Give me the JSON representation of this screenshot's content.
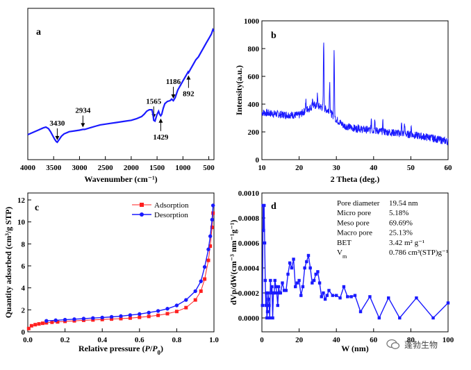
{
  "watermark": {
    "text": "蓬勃生物"
  },
  "chart_data": [
    {
      "panel": "a",
      "type": "line",
      "xlabel": "Wavenumber (cm⁻¹)",
      "ylabel": "",
      "xlim": [
        4000,
        400
      ],
      "x_reversed": true,
      "x_ticks": [
        4000,
        3500,
        3000,
        2500,
        2000,
        1500,
        1000,
        500
      ],
      "y_ticks_shown": false,
      "color": "#1a1aff",
      "series": [
        {
          "x": [
            4000,
            3900,
            3800,
            3700,
            3650,
            3600,
            3560,
            3520,
            3480,
            3450,
            3430,
            3400,
            3350,
            3300,
            3200,
            3100,
            3000,
            2934,
            2900,
            2800,
            2700,
            2600,
            2500,
            2400,
            2300,
            2200,
            2100,
            2000,
            1900,
            1800,
            1750,
            1700,
            1650,
            1600,
            1580,
            1565,
            1540,
            1500,
            1470,
            1450,
            1429,
            1410,
            1380,
            1350,
            1300,
            1250,
            1220,
            1186,
            1150,
            1100,
            1050,
            1000,
            950,
            900,
            892,
            850,
            800,
            750,
            700,
            650,
            600,
            550,
            500,
            450,
            420,
            400
          ],
          "y": [
            0.165,
            0.18,
            0.195,
            0.21,
            0.215,
            0.205,
            0.185,
            0.16,
            0.135,
            0.12,
            0.115,
            0.13,
            0.155,
            0.17,
            0.185,
            0.19,
            0.195,
            0.2,
            0.2,
            0.21,
            0.22,
            0.23,
            0.235,
            0.24,
            0.245,
            0.25,
            0.255,
            0.26,
            0.27,
            0.285,
            0.3,
            0.32,
            0.33,
            0.33,
            0.3,
            0.26,
            0.255,
            0.3,
            0.32,
            0.3,
            0.29,
            0.3,
            0.34,
            0.37,
            0.385,
            0.39,
            0.4,
            0.39,
            0.41,
            0.46,
            0.49,
            0.52,
            0.55,
            0.58,
            0.575,
            0.6,
            0.63,
            0.66,
            0.68,
            0.71,
            0.74,
            0.77,
            0.8,
            0.83,
            0.86,
            0.85
          ]
        }
      ],
      "annotations": [
        {
          "label": "3430",
          "x": 3430
        },
        {
          "label": "2934",
          "x": 2934
        },
        {
          "label": "1565",
          "x": 1565
        },
        {
          "label": "1429",
          "x": 1429
        },
        {
          "label": "1186",
          "x": 1186
        },
        {
          "label": "892",
          "x": 892
        }
      ]
    },
    {
      "panel": "b",
      "type": "line",
      "xlabel": "2 Theta (deg.)",
      "ylabel": "Intensity(a.u.)",
      "xlim": [
        10,
        60
      ],
      "ylim": [
        0,
        1000
      ],
      "x_ticks": [
        10,
        20,
        30,
        40,
        50,
        60
      ],
      "y_ticks": [
        0,
        200,
        400,
        600,
        800,
        1000
      ],
      "color": "#1a1aff",
      "baseline": [
        [
          10,
          340
        ],
        [
          15,
          325
        ],
        [
          20,
          320
        ],
        [
          22,
          360
        ],
        [
          24,
          390
        ],
        [
          26,
          380
        ],
        [
          28,
          350
        ],
        [
          30,
          290
        ],
        [
          32,
          245
        ],
        [
          35,
          225
        ],
        [
          40,
          210
        ],
        [
          45,
          195
        ],
        [
          50,
          180
        ],
        [
          55,
          160
        ],
        [
          60,
          130
        ]
      ],
      "peaks": [
        {
          "x": 21.8,
          "y": 420
        },
        {
          "x": 23.6,
          "y": 445
        },
        {
          "x": 24.9,
          "y": 460
        },
        {
          "x": 26.6,
          "y": 870
        },
        {
          "x": 28.2,
          "y": 560
        },
        {
          "x": 29.4,
          "y": 800
        },
        {
          "x": 36.0,
          "y": 250
        },
        {
          "x": 39.4,
          "y": 300
        },
        {
          "x": 40.3,
          "y": 310
        },
        {
          "x": 42.5,
          "y": 265
        },
        {
          "x": 47.5,
          "y": 255
        },
        {
          "x": 48.3,
          "y": 260
        },
        {
          "x": 50.1,
          "y": 240
        }
      ]
    },
    {
      "panel": "c",
      "type": "line",
      "xlabel": "Relative pressure (P/P0)",
      "ylabel": "Quantity adsorbed (cm³/g STP)",
      "xlim": [
        0,
        1
      ],
      "ylim": [
        0,
        12
      ],
      "x_ticks": [
        0.0,
        0.2,
        0.4,
        0.6,
        0.8,
        1.0
      ],
      "y_ticks": [
        0,
        2,
        4,
        6,
        8,
        10,
        12
      ],
      "series": [
        {
          "name": "Adsorption",
          "color": "#ff2020",
          "marker": "square",
          "x": [
            0.005,
            0.02,
            0.04,
            0.06,
            0.08,
            0.1,
            0.13,
            0.16,
            0.2,
            0.25,
            0.3,
            0.35,
            0.4,
            0.45,
            0.5,
            0.55,
            0.6,
            0.65,
            0.7,
            0.75,
            0.8,
            0.85,
            0.9,
            0.93,
            0.95,
            0.97,
            0.98,
            0.99,
            0.995
          ],
          "y": [
            0.3,
            0.55,
            0.65,
            0.72,
            0.78,
            0.82,
            0.87,
            0.9,
            0.95,
            1.0,
            1.05,
            1.08,
            1.12,
            1.16,
            1.2,
            1.25,
            1.32,
            1.4,
            1.5,
            1.65,
            1.85,
            2.2,
            2.9,
            3.7,
            4.8,
            6.5,
            7.8,
            9.5,
            10.8
          ]
        },
        {
          "name": "Desorption",
          "color": "#1a1aff",
          "marker": "circle",
          "x": [
            0.1,
            0.15,
            0.2,
            0.25,
            0.3,
            0.35,
            0.4,
            0.45,
            0.5,
            0.55,
            0.6,
            0.65,
            0.7,
            0.75,
            0.8,
            0.85,
            0.9,
            0.93,
            0.95,
            0.97,
            0.98,
            0.99,
            0.995
          ],
          "y": [
            1.0,
            1.05,
            1.1,
            1.15,
            1.2,
            1.25,
            1.3,
            1.36,
            1.43,
            1.52,
            1.62,
            1.75,
            1.9,
            2.1,
            2.4,
            2.9,
            3.7,
            4.6,
            5.9,
            7.5,
            8.7,
            10.2,
            11.5
          ]
        }
      ],
      "legend": "top-right"
    },
    {
      "panel": "d",
      "type": "line",
      "xlabel": "W (nm)",
      "ylabel": "dVp/dW(cm⁻³ nm⁻¹g⁻¹)",
      "xlim": [
        0,
        100
      ],
      "ylim": [
        0,
        0.001
      ],
      "x_ticks": [
        0,
        20,
        40,
        60,
        80,
        100
      ],
      "y_ticks": [
        0.0,
        0.0002,
        0.0004,
        0.0006,
        0.0008,
        0.001
      ],
      "y_tick_labels": [
        "0.0000",
        "0.0002",
        "0.0004",
        "0.0006",
        "0.0008",
        "0.0010"
      ],
      "color": "#1a1aff",
      "marker": "square",
      "x": [
        0.3,
        0.6,
        0.9,
        1.2,
        1.5,
        1.8,
        2.1,
        2.4,
        2.7,
        3.0,
        3.3,
        3.6,
        3.9,
        4.2,
        4.6,
        5.0,
        5.4,
        5.8,
        6.2,
        6.6,
        7.0,
        7.5,
        8.0,
        8.5,
        9.0,
        9.5,
        10,
        11,
        12,
        13,
        14,
        15,
        16,
        17,
        18,
        19,
        20,
        21,
        22,
        23,
        24,
        25,
        26,
        27,
        28,
        29,
        30,
        31,
        32,
        33,
        34,
        35,
        36,
        38,
        40,
        42,
        44,
        46,
        48,
        50,
        53,
        58,
        63,
        68,
        74,
        83,
        92,
        100
      ],
      "y": [
        0.0001,
        0.0009,
        0.0007,
        0.0009,
        0.0006,
        0.0003,
        0.0001,
        0.0002,
        0.0,
        5e-05,
        0.0002,
        0.00015,
        0.0001,
        0.0,
        0.0003,
        0.0002,
        0.00025,
        0.0,
        0.0002,
        0.0002,
        0.0003,
        0.00025,
        0.0002,
        0.0001,
        0.00025,
        0.0002,
        0.0002,
        0.00028,
        0.00022,
        0.00022,
        0.00035,
        0.00044,
        0.0004,
        0.00047,
        0.00025,
        0.00028,
        0.0003,
        0.00018,
        0.00025,
        0.0004,
        0.00045,
        0.0005,
        0.0004,
        0.00028,
        0.0003,
        0.00035,
        0.00037,
        0.00028,
        0.00017,
        0.0002,
        0.00015,
        0.00018,
        0.00022,
        0.00018,
        0.00018,
        0.00016,
        0.00025,
        0.00017,
        0.00017,
        0.00018,
        5e-05,
        0.00017,
        0.0,
        0.00016,
        0.0,
        0.00016,
        0.0,
        0.00012
      ],
      "info_table": [
        {
          "label": "Pore diameter",
          "value": "19.54 nm"
        },
        {
          "label": "Micro pore",
          "value": "5.18%"
        },
        {
          "label": "Meso  pore",
          "value": "69.69%"
        },
        {
          "label": "Macro pore",
          "value": "25.13%"
        },
        {
          "label": "BET",
          "value": "3.42 m² g⁻¹"
        },
        {
          "label": "Vm",
          "value": "0.786 cm³(STP)g⁻¹"
        }
      ]
    }
  ]
}
